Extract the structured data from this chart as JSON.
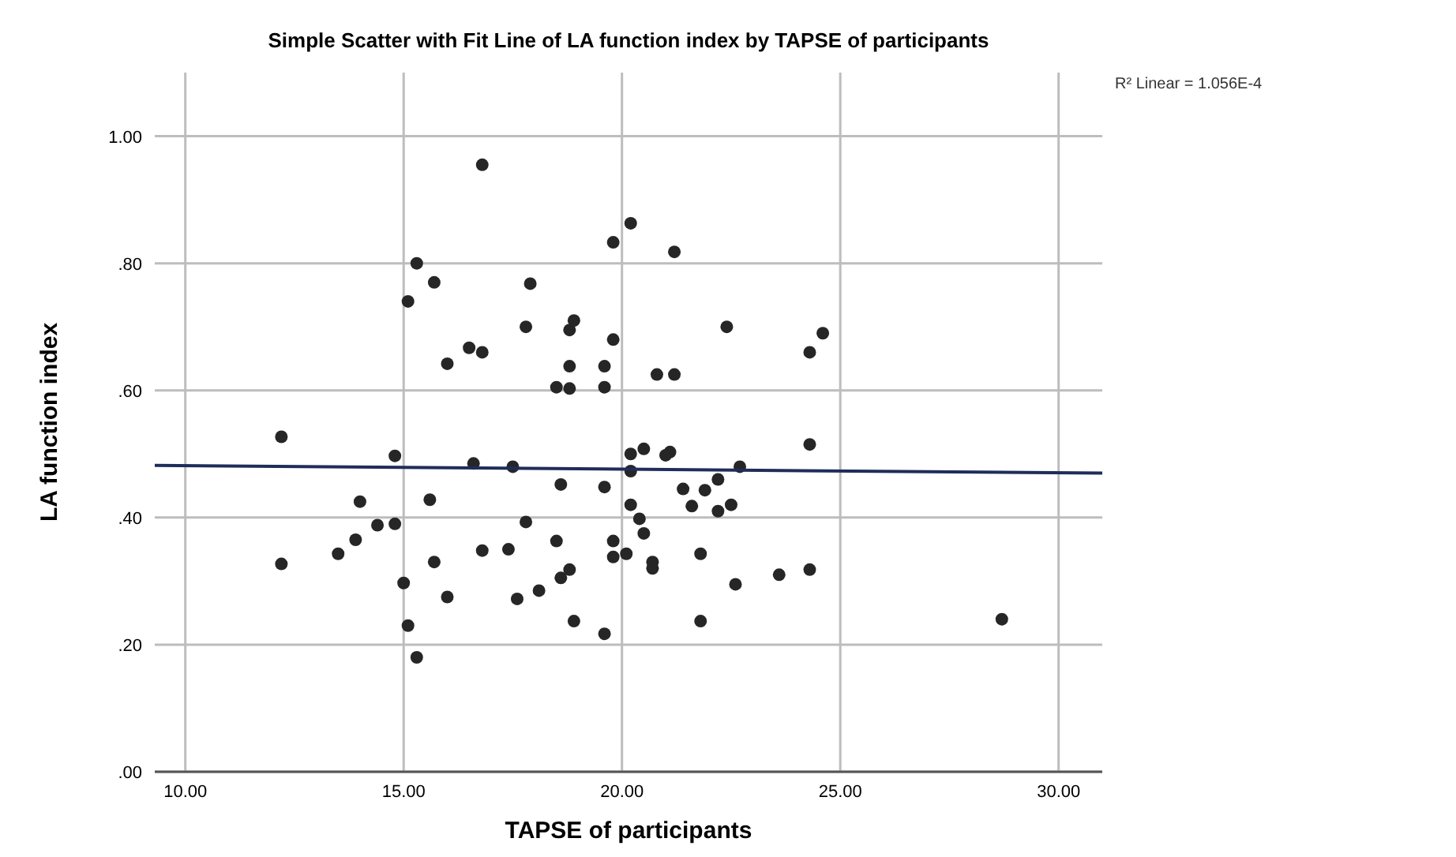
{
  "chart_data": {
    "type": "scatter",
    "title": "Simple Scatter with Fit Line of LA function index by TAPSE of participants",
    "xlabel": "TAPSE of participants",
    "ylabel": "LA function index",
    "annotations": [
      "R² Linear = 1.056E-4"
    ],
    "xlim": [
      9.3,
      31.0
    ],
    "ylim": [
      0,
      1.1
    ],
    "xticks": [
      {
        "value": 10,
        "label": "10.00"
      },
      {
        "value": 15,
        "label": "15.00"
      },
      {
        "value": 20,
        "label": "20.00"
      },
      {
        "value": 25,
        "label": "25.00"
      },
      {
        "value": 30,
        "label": "30.00"
      }
    ],
    "yticks": [
      {
        "value": 0,
        "label": ".00"
      },
      {
        "value": 0.2,
        "label": ".20"
      },
      {
        "value": 0.4,
        "label": ".40"
      },
      {
        "value": 0.6,
        "label": ".60"
      },
      {
        "value": 0.8,
        "label": ".80"
      },
      {
        "value": 1.0,
        "label": "1.00"
      }
    ],
    "grid": true,
    "marker": "circle",
    "series": [
      {
        "color": "#262626",
        "x": [
          12.2,
          12.2,
          13.5,
          13.9,
          14.0,
          14.4,
          14.8,
          14.8,
          15.0,
          15.1,
          15.3,
          15.1,
          15.3,
          15.7,
          15.6,
          15.7,
          16.0,
          16.0,
          16.5,
          16.8,
          16.8,
          16.6,
          16.8,
          17.4,
          17.5,
          17.6,
          17.8,
          17.9,
          17.8,
          18.1,
          18.5,
          18.5,
          18.6,
          18.6,
          18.8,
          18.8,
          18.8,
          18.8,
          18.9,
          18.9,
          19.6,
          19.6,
          19.6,
          19.6,
          19.8,
          19.8,
          19.8,
          19.8,
          20.2,
          20.1,
          20.2,
          20.2,
          20.2,
          20.4,
          20.5,
          20.5,
          20.7,
          20.7,
          20.8,
          21.0,
          21.1,
          21.2,
          21.2,
          21.4,
          21.6,
          21.9,
          21.8,
          21.8,
          22.2,
          22.2,
          22.5,
          22.4,
          22.6,
          22.7,
          23.6,
          24.3,
          24.3,
          24.3,
          24.6,
          28.7
        ],
        "values": [
          0.527,
          0.327,
          0.343,
          0.365,
          0.425,
          0.388,
          0.39,
          0.497,
          0.297,
          0.23,
          0.18,
          0.74,
          0.8,
          0.77,
          0.428,
          0.33,
          0.275,
          0.642,
          0.667,
          0.66,
          0.955,
          0.485,
          0.348,
          0.35,
          0.48,
          0.272,
          0.7,
          0.768,
          0.393,
          0.285,
          0.605,
          0.363,
          0.452,
          0.305,
          0.318,
          0.603,
          0.638,
          0.695,
          0.71,
          0.237,
          0.605,
          0.638,
          0.448,
          0.217,
          0.833,
          0.68,
          0.363,
          0.338,
          0.863,
          0.343,
          0.5,
          0.473,
          0.42,
          0.398,
          0.375,
          0.508,
          0.33,
          0.32,
          0.625,
          0.498,
          0.503,
          0.625,
          0.818,
          0.445,
          0.418,
          0.443,
          0.343,
          0.237,
          0.46,
          0.41,
          0.42,
          0.7,
          0.295,
          0.48,
          0.31,
          0.515,
          0.318,
          0.66,
          0.69,
          0.24
        ]
      },
      {
        "type": "line",
        "color": "#1f2d5a",
        "marker": "none",
        "line_style": "solid",
        "x": [
          9.3,
          31.0
        ],
        "values": [
          0.482,
          0.47
        ]
      }
    ]
  }
}
